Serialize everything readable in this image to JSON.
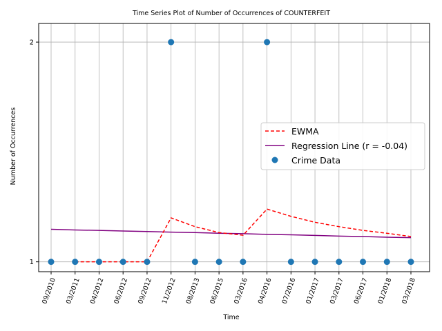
{
  "chart_data": {
    "type": "line",
    "title": "Time Series Plot of Number of Occurrences of COUNTERFEIT",
    "xlabel": "Time",
    "ylabel": "Number of Occurrences",
    "categories": [
      "09/2010",
      "03/2011",
      "04/2012",
      "06/2012",
      "09/2012",
      "11/2012",
      "08/2013",
      "06/2015",
      "03/2016",
      "04/2016",
      "07/2016",
      "01/2017",
      "03/2017",
      "06/2017",
      "01/2018",
      "03/2018"
    ],
    "yticks": [
      1,
      2
    ],
    "ylim": [
      0.955,
      2.085
    ],
    "grid": true,
    "legend_position": "center-right",
    "series": [
      {
        "name": "Crime Data",
        "kind": "scatter",
        "color": "#1f77b4",
        "values": [
          1,
          1,
          1,
          1,
          1,
          2,
          1,
          1,
          1,
          2,
          1,
          1,
          1,
          1,
          1,
          1
        ]
      },
      {
        "name": "EWMA",
        "kind": "line-dashed",
        "color": "#ff0000",
        "start_index": 1,
        "values": [
          null,
          1.0,
          1.0,
          1.0,
          1.0,
          1.2,
          1.16,
          1.133,
          1.121,
          1.24,
          1.207,
          1.18,
          1.16,
          1.143,
          1.13,
          1.115
        ]
      },
      {
        "name": "Regression Line (r = -0.04)",
        "kind": "line",
        "color": "#800080",
        "values": [
          1.148,
          1.145,
          1.143,
          1.14,
          1.138,
          1.135,
          1.133,
          1.13,
          1.128,
          1.125,
          1.123,
          1.12,
          1.117,
          1.115,
          1.112,
          1.11
        ]
      }
    ]
  }
}
